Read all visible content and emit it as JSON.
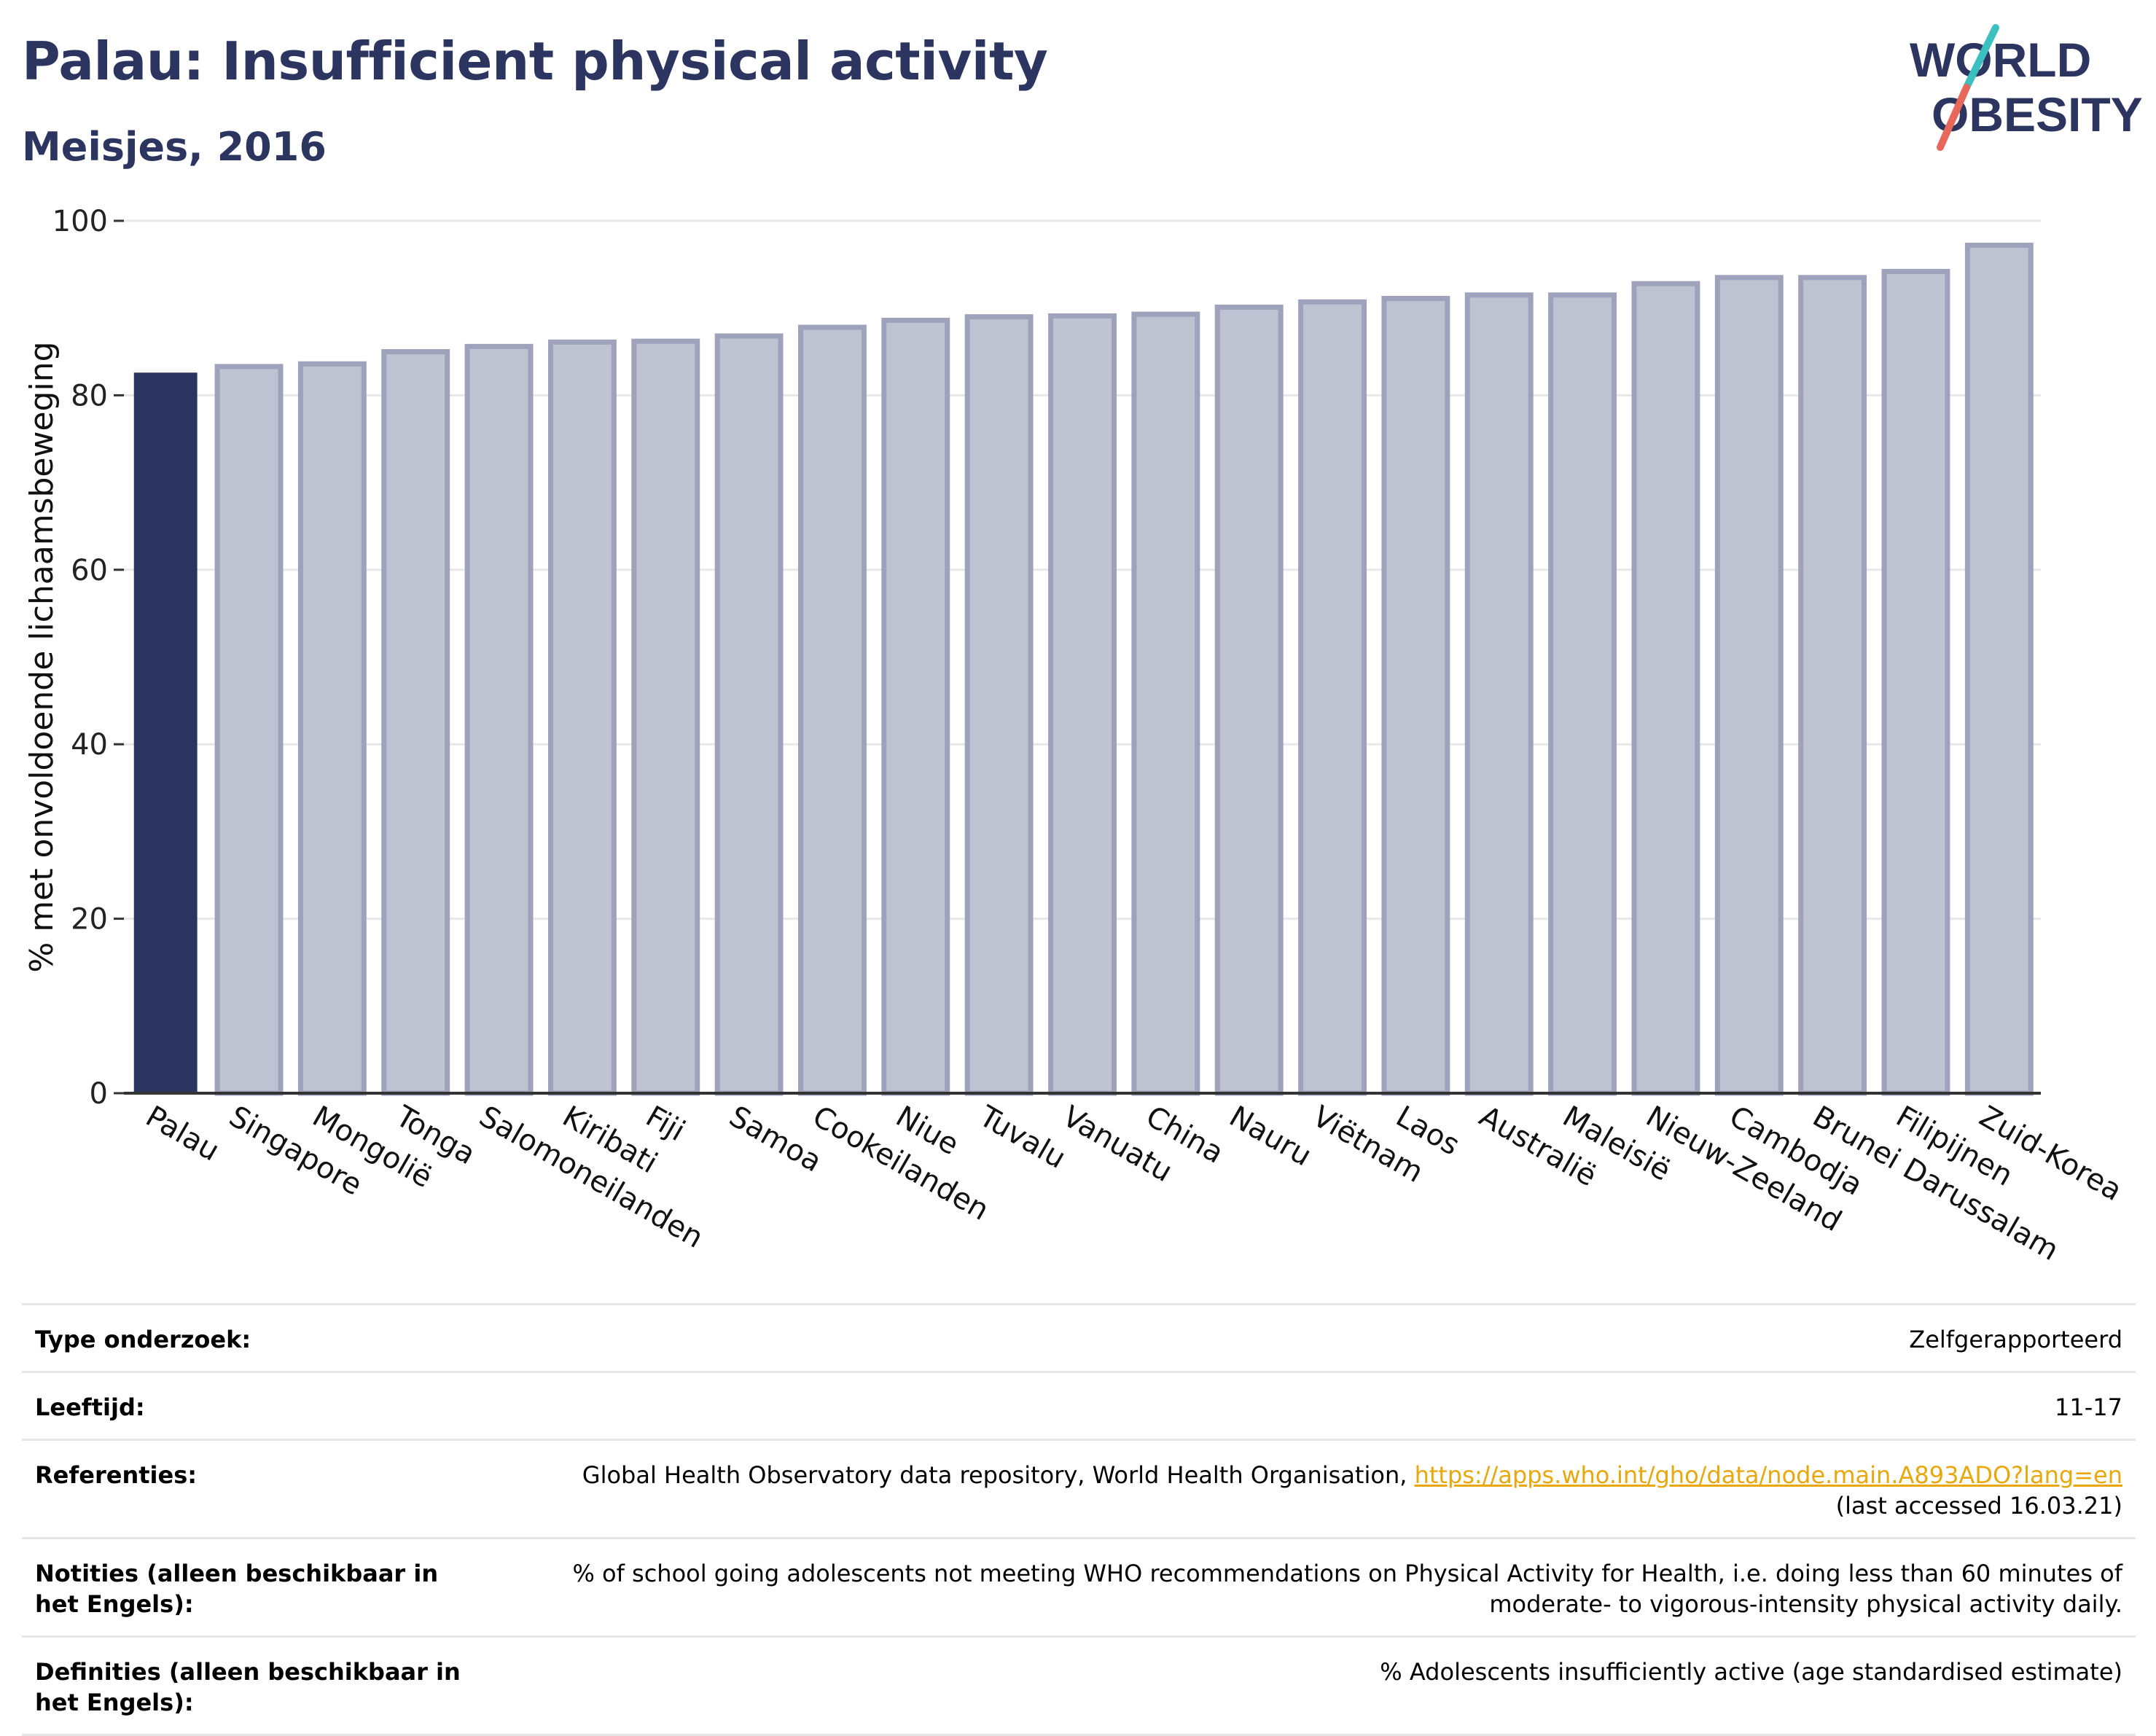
{
  "header": {
    "title": "Palau: Insufficient physical activity",
    "subtitle": "Meisjes, 2016"
  },
  "logo": {
    "line1": "WORLD",
    "line2": "OBESITY"
  },
  "colors": {
    "highlight_bar": "#2b3560",
    "other_bar_fill": "#bfc2d0",
    "other_bar_stroke": "#9ea2bb",
    "title": "#2b3560",
    "link": "#e8a80c"
  },
  "chart_data": {
    "type": "bar",
    "ylabel": "% met onvoldoende lichaamsbeweging",
    "ylim": [
      0,
      100
    ],
    "yticks": [
      0,
      20,
      40,
      60,
      80,
      100
    ],
    "grid": true,
    "highlight": "Palau",
    "categories": [
      "Palau",
      "Singapore",
      "Mongolië",
      "Tonga",
      "Salomoneilanden",
      "Kiribati",
      "Fiji",
      "Samoa",
      "Cookeilanden",
      "Niue",
      "Tuvalu",
      "Vanuatu",
      "China",
      "Nauru",
      "Viëtnam",
      "Laos",
      "Australië",
      "Maleisië",
      "Nieuw-Zeeland",
      "Cambodja",
      "Brunei Darussalam",
      "Filipijnen",
      "Zuid-Korea"
    ],
    "values": [
      82.6,
      83.3,
      83.6,
      85.0,
      85.6,
      86.1,
      86.2,
      86.8,
      87.8,
      88.6,
      89.0,
      89.1,
      89.3,
      90.1,
      90.7,
      91.1,
      91.5,
      91.5,
      92.8,
      93.5,
      93.5,
      94.2,
      97.2
    ]
  },
  "info": [
    {
      "label": "Type onderzoek:",
      "value": "Zelfgerapporteerd"
    },
    {
      "label": "Leeftijd:",
      "value": "11-17"
    },
    {
      "label": "Referenties:",
      "value": "Global Health Observatory data repository, World Health Organisation,",
      "link": "https://apps.who.int/gho/data/node.main.A893ADO?lang=en",
      "value_after": "(last accessed 16.03.21)"
    },
    {
      "label": "Notities (alleen beschikbaar in het Engels):",
      "value": "% of school going adolescents not meeting WHO recommendations on Physical Activity for Health, i.e. doing less than 60 minutes of moderate- to vigorous-intensity physical activity daily."
    },
    {
      "label": "Definities (alleen beschikbaar in het Engels):",
      "value": "% Adolescents insufficiently active (age standardised estimate)"
    }
  ]
}
